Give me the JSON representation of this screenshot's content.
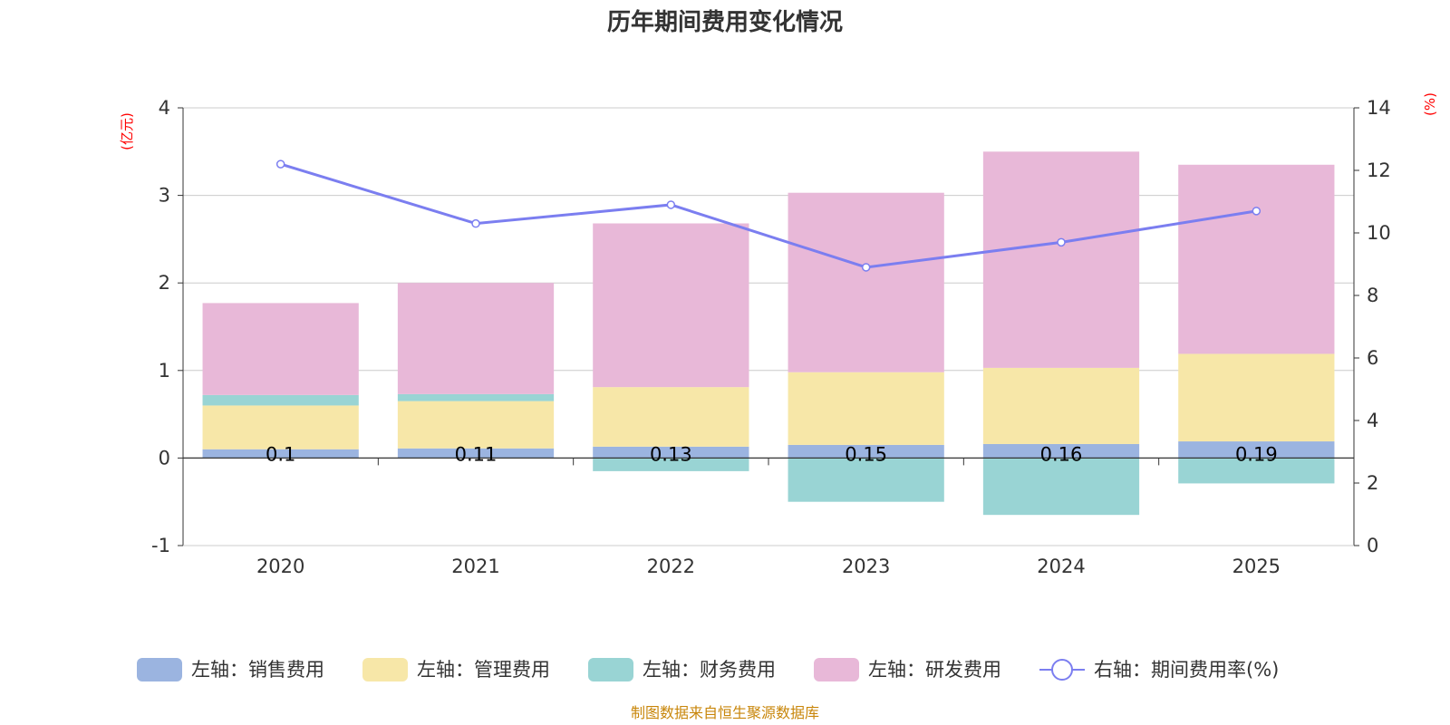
{
  "chart_data": {
    "type": "bar",
    "title": "历年期间费用变化情况",
    "categories": [
      "2020",
      "2021",
      "2022",
      "2023",
      "2024",
      "2025"
    ],
    "left_axis": {
      "name": "(亿元)",
      "ylim": [
        -1,
        4
      ],
      "ticks": [
        -1,
        0,
        1,
        2,
        3,
        4
      ]
    },
    "right_axis": {
      "name": "(%)",
      "ylim": [
        0,
        14
      ],
      "ticks": [
        0,
        2,
        4,
        6,
        8,
        10,
        12,
        14
      ]
    },
    "series": [
      {
        "name": "左轴：销售费用",
        "type": "bar",
        "color": "#9bb4e0",
        "values": [
          0.1,
          0.11,
          0.13,
          0.15,
          0.16,
          0.19
        ],
        "labels": [
          "0.1",
          "0.11",
          "0.13",
          "0.15",
          "0.16",
          "0.19"
        ]
      },
      {
        "name": "左轴：管理费用",
        "type": "bar",
        "color": "#f7e7a8",
        "values": [
          0.5,
          0.54,
          0.68,
          0.83,
          0.87,
          1.0
        ]
      },
      {
        "name": "左轴：财务费用",
        "type": "bar",
        "color": "#99d4d4",
        "values": [
          0.12,
          0.08,
          -0.15,
          -0.5,
          -0.65,
          -0.29
        ]
      },
      {
        "name": "左轴：研发费用",
        "type": "bar",
        "color": "#e8b8d8",
        "values": [
          1.05,
          1.27,
          1.87,
          2.05,
          2.47,
          2.16
        ]
      },
      {
        "name": "右轴：期间费用率(%)",
        "type": "line",
        "axis": "right",
        "color": "#7b7ef0",
        "values": [
          12.2,
          10.3,
          10.9,
          8.9,
          9.7,
          10.7
        ]
      }
    ],
    "grid": true,
    "legend_position": "bottom"
  },
  "source_note": "制图数据来自恒生聚源数据库"
}
